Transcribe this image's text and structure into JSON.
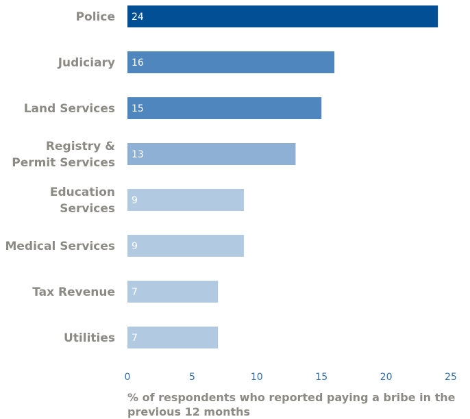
{
  "chart_data": {
    "type": "bar",
    "orientation": "horizontal",
    "categories": [
      [
        "Police"
      ],
      [
        "Judiciary"
      ],
      [
        "Land Services"
      ],
      [
        "Registry &",
        "Permit Services"
      ],
      [
        "Education",
        "Services"
      ],
      [
        "Medical Services"
      ],
      [
        "Tax Revenue"
      ],
      [
        "Utilities"
      ]
    ],
    "values": [
      24,
      16,
      15,
      13,
      9,
      9,
      7,
      7
    ],
    "bar_colors": [
      "#024f96",
      "#4f86bd",
      "#4f86bd",
      "#8eb0d4",
      "#b2c9e2",
      "#b2c9e2",
      "#b2c9e2",
      "#b2c9e2"
    ],
    "xlim": [
      0,
      25
    ],
    "xticks": [
      0,
      5,
      10,
      15,
      20,
      25
    ],
    "xlabel": [
      "% of respondents who reported paying a bribe in the",
      "previous 12 months"
    ],
    "title": "",
    "grid": false
  }
}
